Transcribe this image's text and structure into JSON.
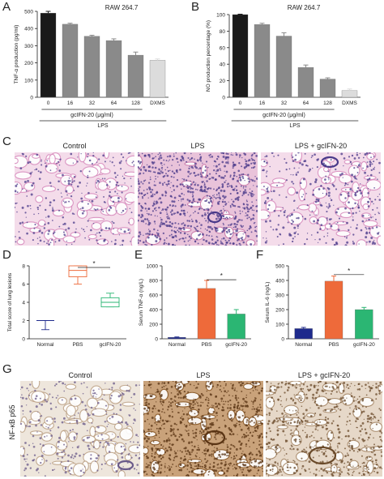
{
  "panels": {
    "A": {
      "letter": "A",
      "title": "RAW 264.7",
      "ylabel": "TNF-α production (pg/ml)",
      "xgroup_label": "gcIFN-20 (μg/ml)",
      "xgroup2_label": "LPS",
      "yticks": [
        "0",
        "100",
        "200",
        "300",
        "400",
        "500"
      ]
    },
    "B": {
      "letter": "B",
      "title": "RAW 264.7",
      "ylabel": "NO production percentage (%)",
      "xgroup_label": "gcIFN-20 (μg/ml)",
      "xgroup2_label": "LPS",
      "yticks": [
        "0",
        "20",
        "40",
        "60",
        "80",
        "100"
      ]
    },
    "C": {
      "letter": "C",
      "labels": [
        "Control",
        "LPS",
        "LPS + gcIFN-20"
      ]
    },
    "D": {
      "letter": "D",
      "ylabel": "Total score of lung lesions",
      "yticks": [
        "0",
        "2",
        "4",
        "6",
        "8"
      ],
      "sig": "*"
    },
    "E": {
      "letter": "E",
      "ylabel": "Serum TNF-α (ng/L)",
      "yticks": [
        "0",
        "200",
        "400",
        "600",
        "800",
        "1000"
      ],
      "sig": "*"
    },
    "F": {
      "letter": "F",
      "ylabel": "Serum IL-6 (ng/L)",
      "yticks": [
        "0",
        "100",
        "200",
        "300",
        "400",
        "500"
      ],
      "sig": "*"
    },
    "G": {
      "letter": "G",
      "row_label": "NF-κB p65",
      "labels": [
        "Control",
        "LPS",
        "LPS + gcIFN-20"
      ]
    }
  },
  "colors": {
    "black_bar": "#1a1a1a",
    "gray_bar": "#8a8a8a",
    "light_bar": "#dcdcdc",
    "normal_blue": "#1e2a8c",
    "pbs_orange": "#ee6a3a",
    "gcifn_green": "#2bb673",
    "he_pink": "#e8b8d8",
    "he_nuclei": "#4a3a8a",
    "ihc_bg": "#eee6dc",
    "ihc_brown": "#8a5a2a"
  },
  "chart_data": [
    {
      "type": "bar",
      "title": "RAW 264.7",
      "ylabel": "TNF-α production (pg/ml)",
      "xlabel": "gcIFN-20 (μg/ml)",
      "categories": [
        "0",
        "16",
        "32",
        "64",
        "128",
        "DXMS"
      ],
      "values": [
        490,
        425,
        355,
        330,
        245,
        215
      ],
      "errors": [
        10,
        6,
        6,
        10,
        18,
        8
      ],
      "ylim": [
        0,
        500
      ]
    },
    {
      "type": "bar",
      "title": "RAW 264.7",
      "ylabel": "NO production percentage (%)",
      "xlabel": "gcIFN-20 (μg/ml)",
      "categories": [
        "0",
        "16",
        "32",
        "64",
        "128",
        "DXMS"
      ],
      "values": [
        100,
        88,
        74,
        36,
        22,
        8
      ],
      "errors": [
        0.5,
        1.5,
        4,
        3,
        1.5,
        2
      ],
      "ylim": [
        0,
        100
      ]
    },
    {
      "type": "box",
      "ylabel": "Total score of lung lesions",
      "categories": [
        "Normal",
        "PBS",
        "gcIFN-20"
      ],
      "boxes": [
        {
          "min": 1,
          "q1": 2,
          "median": 2,
          "q3": 2,
          "max": 2
        },
        {
          "min": 6,
          "q1": 6.8,
          "median": 7.5,
          "q3": 8,
          "max": 8
        },
        {
          "min": 3.5,
          "q1": 3.5,
          "median": 4,
          "q3": 4.5,
          "max": 5
        }
      ],
      "ylim": [
        0,
        8
      ]
    },
    {
      "type": "bar",
      "ylabel": "Serum TNF-α (ng/L)",
      "categories": [
        "Normal",
        "PBS",
        "gcIFN-20"
      ],
      "values": [
        20,
        690,
        340
      ],
      "errors": [
        5,
        110,
        60
      ],
      "ylim": [
        0,
        1000
      ]
    },
    {
      "type": "bar",
      "ylabel": "Serum IL-6 (ng/L)",
      "categories": [
        "Normal",
        "PBS",
        "gcIFN-20"
      ],
      "values": [
        70,
        395,
        200
      ],
      "errors": [
        8,
        35,
        15
      ],
      "ylim": [
        0,
        500
      ]
    }
  ]
}
